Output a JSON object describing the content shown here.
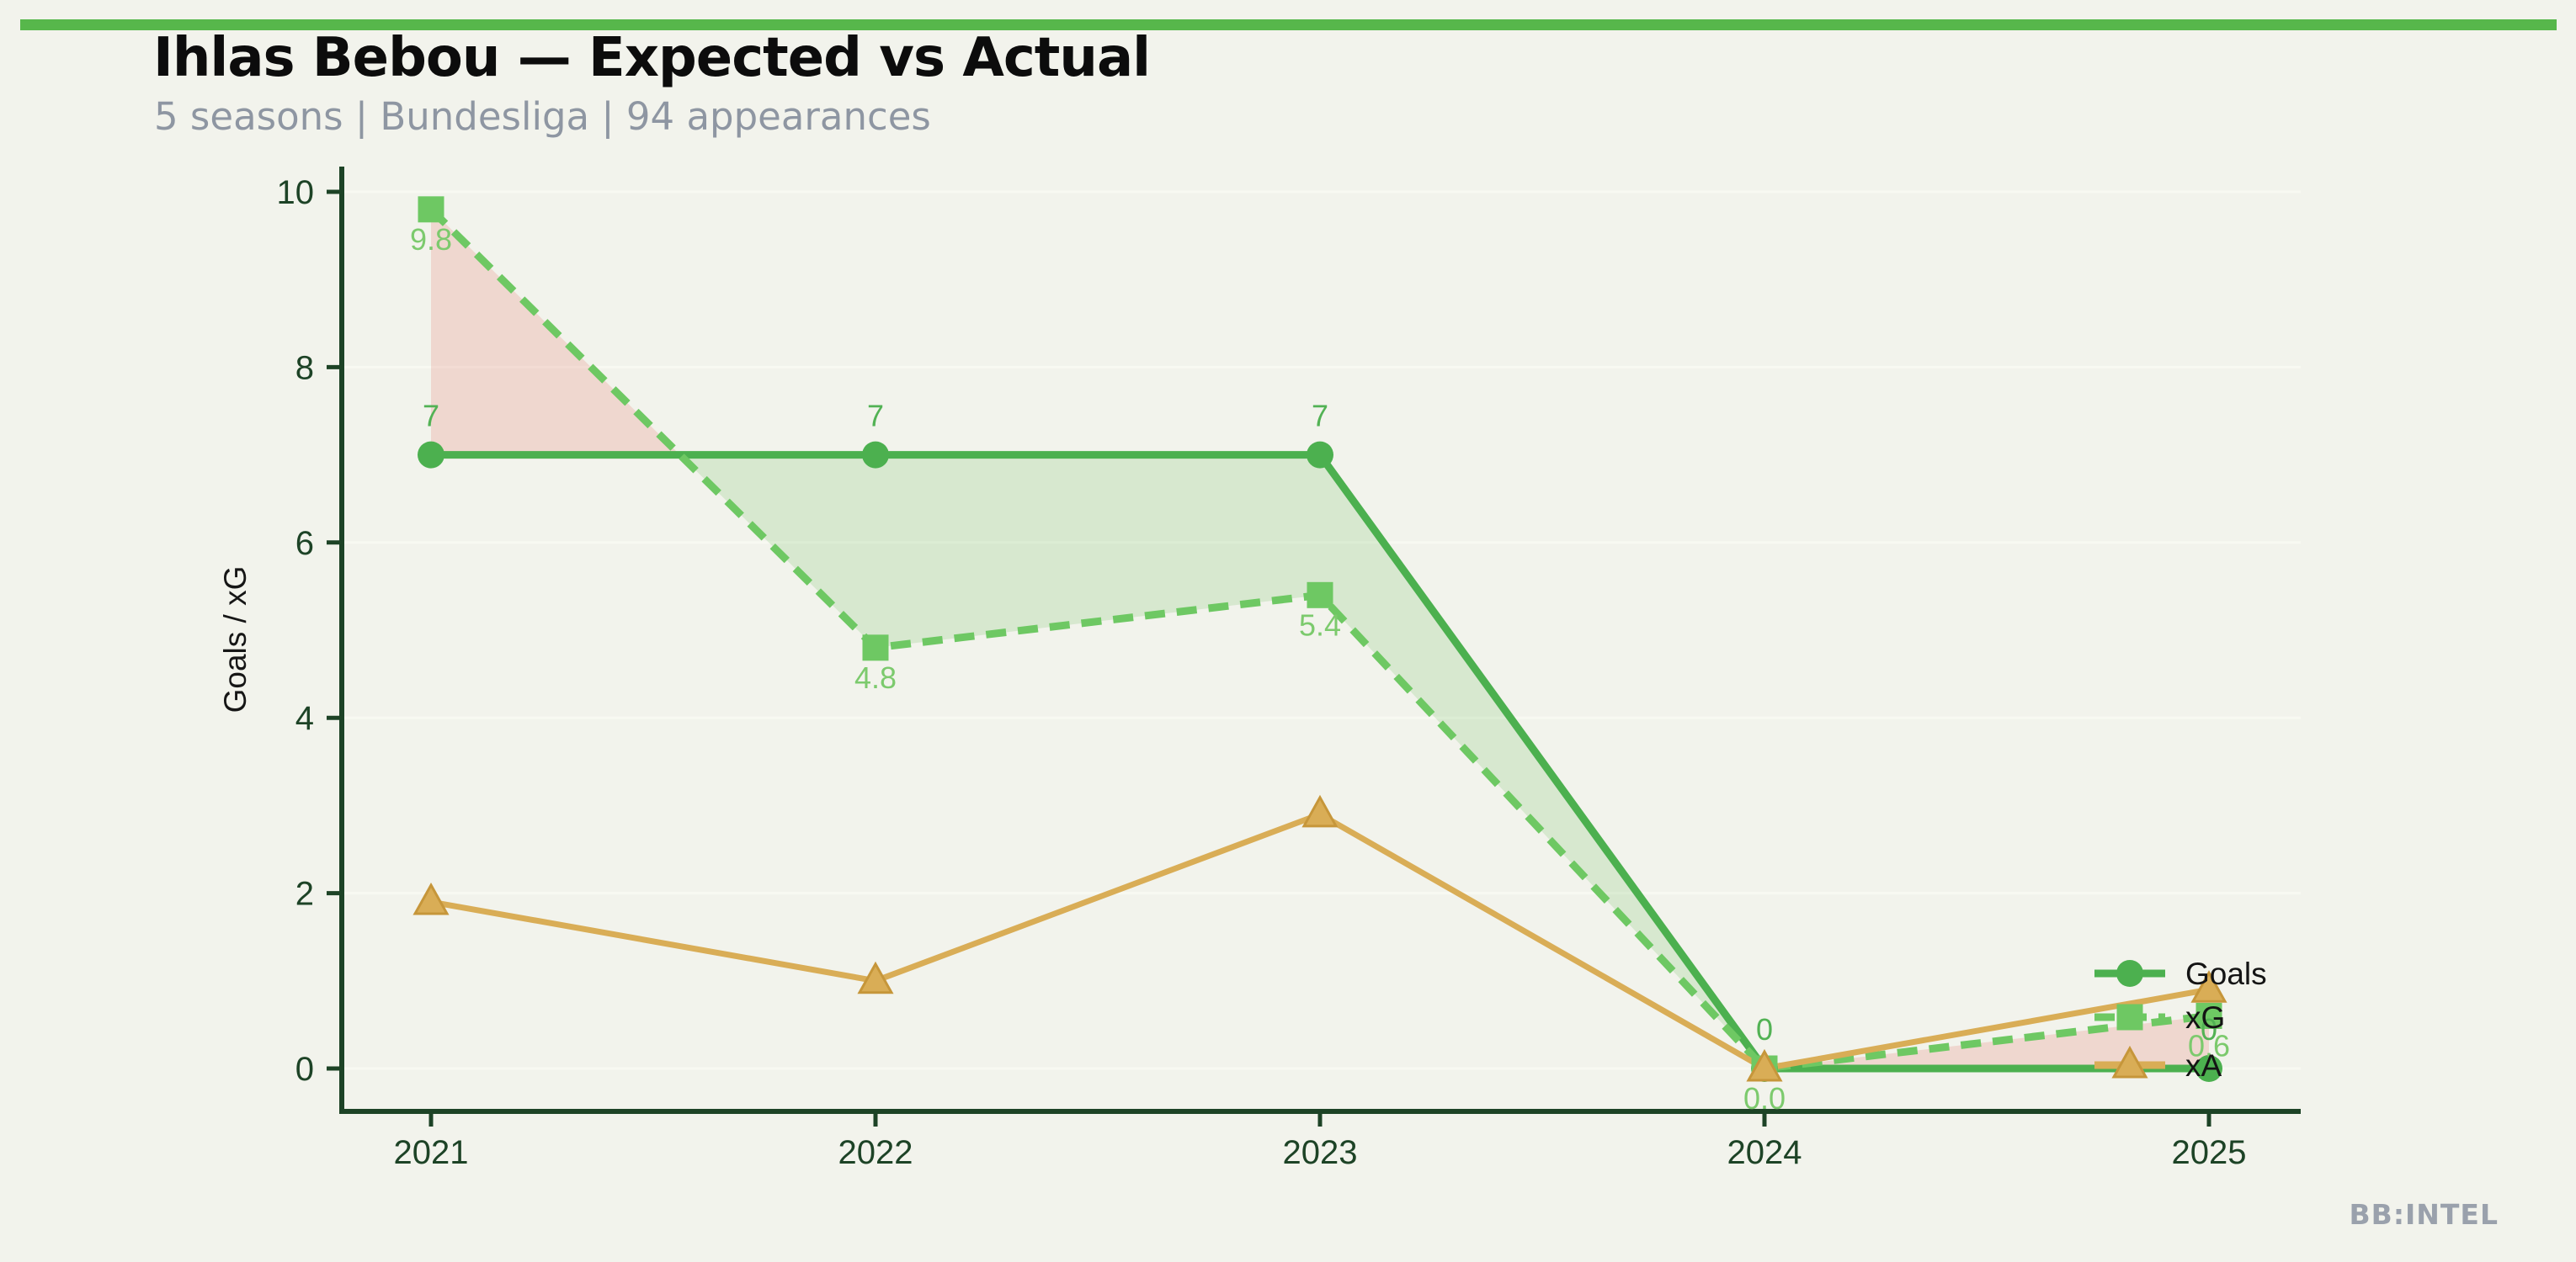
{
  "header": {
    "title": "Ihlas Bebou — Expected vs Actual",
    "subtitle": "5 seasons | Bundesliga | 94 appearances"
  },
  "footer": {
    "watermark": "BB:INTEL"
  },
  "chart_data": {
    "type": "line",
    "title": "Ihlas Bebou — Expected vs Actual",
    "subtitle": "5 seasons | Bundesliga | 94 appearances",
    "x": [
      2021,
      2022,
      2023,
      2024,
      2025
    ],
    "x_tick_labels": [
      "2021",
      "2022",
      "2023",
      "2024",
      "2025"
    ],
    "ylabel": "Goals / xG",
    "yticks": [
      0,
      2,
      4,
      6,
      8,
      10
    ],
    "ylim": [
      -0.5,
      10.3
    ],
    "grid": "horizontal",
    "legend_position": "inside-right",
    "series": [
      {
        "name": "Goals",
        "values": [
          7,
          7,
          7,
          0,
          0
        ],
        "color": "#4cb04f",
        "marker": "circle",
        "line": "solid",
        "point_labels": [
          "7",
          "7",
          "7",
          "0",
          "0"
        ],
        "label_color": "#52b254",
        "label_side": "above"
      },
      {
        "name": "xG",
        "values": [
          9.8,
          4.8,
          5.4,
          0.0,
          0.6
        ],
        "color": "#6ec863",
        "marker": "square",
        "line": "dashed",
        "point_labels": [
          "9.8",
          "4.8",
          "5.4",
          "0.0",
          "0.6"
        ],
        "label_color": "#7cca6d",
        "label_side": "below"
      },
      {
        "name": "xA",
        "values": [
          1.9,
          1.0,
          2.9,
          0.0,
          0.9
        ],
        "color": "#d9ad56",
        "marker": "triangle",
        "marker_edge": "#c6963a",
        "line": "solid",
        "point_labels": null
      }
    ],
    "fill_between": {
      "upper": "xG",
      "lower": "Goals",
      "over_color": "#e5756a",
      "over_opacity": 0.22,
      "under_color": "#6fbe5e",
      "under_opacity": 0.2
    },
    "colors": {
      "background": "#f2f3ec",
      "accent_bar": "#57b74b",
      "axis": "#1d4326",
      "gridline": "#f8f9f2"
    }
  }
}
